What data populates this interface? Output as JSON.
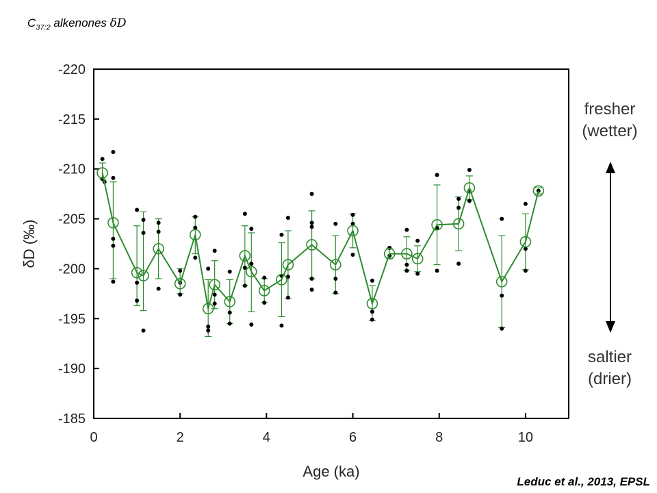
{
  "header": {
    "title_prefix": "C",
    "title_subscript": "37:2",
    "title_text": " alkenones ",
    "title_delta": "δD"
  },
  "citation": "Leduc et al., 2013, EPSL",
  "annotations": {
    "top_line1": "fresher",
    "top_line2": "(wetter)",
    "bottom_line1": "saltier",
    "bottom_line2": "(drier)"
  },
  "colors": {
    "series_line": "#2e8b2e",
    "replicates": "#000000",
    "axis": "#000000"
  },
  "chart_data": {
    "type": "line",
    "xlabel": "Age (ka)",
    "ylabel": "δD (‰)",
    "xlim": [
      0,
      11
    ],
    "ylim": [
      -220,
      -185
    ],
    "y_inverted": true,
    "xticks": [
      0,
      2,
      4,
      6,
      8,
      10
    ],
    "yticks": [
      -220,
      -215,
      -210,
      -205,
      -200,
      -195,
      -190,
      -185
    ],
    "mean_series": {
      "marker": "open-circle",
      "points": [
        {
          "x": 0.2,
          "y": -209.6,
          "lo": -210.6,
          "hi": -209.0
        },
        {
          "x": 0.45,
          "y": -204.6,
          "lo": -208.7,
          "hi": -199.0
        },
        {
          "x": 1.0,
          "y": -199.6,
          "lo": -204.3,
          "hi": -196.3
        },
        {
          "x": 1.15,
          "y": -199.3,
          "lo": -205.7,
          "hi": -195.8
        },
        {
          "x": 1.5,
          "y": -202.0,
          "lo": -205.0,
          "hi": -199.0
        },
        {
          "x": 2.0,
          "y": -198.5,
          "lo": -200.0,
          "hi": -197.5
        },
        {
          "x": 2.35,
          "y": -203.4,
          "lo": -205.2,
          "hi": -201.5
        },
        {
          "x": 2.65,
          "y": -196.0,
          "lo": -198.9,
          "hi": -193.2
        },
        {
          "x": 2.8,
          "y": -198.4,
          "lo": -200.8,
          "hi": -196.0
        },
        {
          "x": 3.15,
          "y": -196.7,
          "lo": -198.9,
          "hi": -194.5
        },
        {
          "x": 3.5,
          "y": -201.3,
          "lo": -204.3,
          "hi": -198.3
        },
        {
          "x": 3.65,
          "y": -199.7,
          "lo": -203.6,
          "hi": -195.7
        },
        {
          "x": 3.95,
          "y": -197.8,
          "lo": -199.0,
          "hi": -196.6
        },
        {
          "x": 4.35,
          "y": -198.9,
          "lo": -202.6,
          "hi": -195.2
        },
        {
          "x": 4.5,
          "y": -200.4,
          "lo": -203.8,
          "hi": -197.0
        },
        {
          "x": 5.05,
          "y": -202.4,
          "lo": -205.8,
          "hi": -199.0
        },
        {
          "x": 5.6,
          "y": -200.4,
          "lo": -203.3,
          "hi": -197.5
        },
        {
          "x": 6.0,
          "y": -203.8,
          "lo": -205.5,
          "hi": -202.1
        },
        {
          "x": 6.45,
          "y": -196.5,
          "lo": -198.3,
          "hi": -194.8
        },
        {
          "x": 6.85,
          "y": -201.5,
          "lo": -202.0,
          "hi": -201.0
        },
        {
          "x": 7.25,
          "y": -201.5,
          "lo": -203.2,
          "hi": -199.8
        },
        {
          "x": 7.5,
          "y": -201.0,
          "lo": -202.3,
          "hi": -199.7
        },
        {
          "x": 7.95,
          "y": -204.4,
          "lo": -208.4,
          "hi": -200.4
        },
        {
          "x": 8.45,
          "y": -204.5,
          "lo": -207.2,
          "hi": -201.8
        },
        {
          "x": 8.7,
          "y": -208.1,
          "lo": -209.3,
          "hi": -206.9
        },
        {
          "x": 9.45,
          "y": -198.7,
          "lo": -203.3,
          "hi": -194.1
        },
        {
          "x": 10.0,
          "y": -202.7,
          "lo": -205.5,
          "hi": -199.9
        },
        {
          "x": 10.3,
          "y": -207.8,
          "lo": -208.1,
          "hi": -207.5
        }
      ]
    },
    "replicates": {
      "marker": "filled-dot",
      "points": [
        {
          "x": 0.2,
          "y": -211.0
        },
        {
          "x": 0.2,
          "y": -209.0
        },
        {
          "x": 0.25,
          "y": -208.7
        },
        {
          "x": 0.45,
          "y": -211.7
        },
        {
          "x": 0.45,
          "y": -209.1
        },
        {
          "x": 0.45,
          "y": -203.0
        },
        {
          "x": 0.45,
          "y": -202.3
        },
        {
          "x": 0.45,
          "y": -198.7
        },
        {
          "x": 1.0,
          "y": -205.9
        },
        {
          "x": 1.0,
          "y": -198.6
        },
        {
          "x": 1.0,
          "y": -196.8
        },
        {
          "x": 1.15,
          "y": -204.9
        },
        {
          "x": 1.15,
          "y": -203.6
        },
        {
          "x": 1.15,
          "y": -193.8
        },
        {
          "x": 1.5,
          "y": -204.6
        },
        {
          "x": 1.5,
          "y": -203.7
        },
        {
          "x": 1.5,
          "y": -198.0
        },
        {
          "x": 2.0,
          "y": -199.8
        },
        {
          "x": 2.0,
          "y": -198.6
        },
        {
          "x": 2.0,
          "y": -197.4
        },
        {
          "x": 2.35,
          "y": -205.2
        },
        {
          "x": 2.35,
          "y": -204.1
        },
        {
          "x": 2.35,
          "y": -201.1
        },
        {
          "x": 2.65,
          "y": -200.0
        },
        {
          "x": 2.65,
          "y": -194.2
        },
        {
          "x": 2.65,
          "y": -193.8
        },
        {
          "x": 2.8,
          "y": -201.8
        },
        {
          "x": 2.8,
          "y": -197.4
        },
        {
          "x": 2.8,
          "y": -196.5
        },
        {
          "x": 3.15,
          "y": -199.7
        },
        {
          "x": 3.15,
          "y": -195.6
        },
        {
          "x": 3.15,
          "y": -194.5
        },
        {
          "x": 3.5,
          "y": -205.5
        },
        {
          "x": 3.5,
          "y": -200.1
        },
        {
          "x": 3.5,
          "y": -198.3
        },
        {
          "x": 3.65,
          "y": -204.0
        },
        {
          "x": 3.65,
          "y": -200.5
        },
        {
          "x": 3.65,
          "y": -194.4
        },
        {
          "x": 3.95,
          "y": -199.1
        },
        {
          "x": 3.95,
          "y": -196.6
        },
        {
          "x": 4.35,
          "y": -203.4
        },
        {
          "x": 4.35,
          "y": -199.3
        },
        {
          "x": 4.35,
          "y": -194.3
        },
        {
          "x": 4.5,
          "y": -205.1
        },
        {
          "x": 4.5,
          "y": -199.2
        },
        {
          "x": 4.5,
          "y": -197.1
        },
        {
          "x": 5.05,
          "y": -207.5
        },
        {
          "x": 5.05,
          "y": -204.6
        },
        {
          "x": 5.05,
          "y": -204.2
        },
        {
          "x": 5.05,
          "y": -199.0
        },
        {
          "x": 5.05,
          "y": -197.9
        },
        {
          "x": 5.6,
          "y": -204.5
        },
        {
          "x": 5.6,
          "y": -199.0
        },
        {
          "x": 5.6,
          "y": -197.6
        },
        {
          "x": 6.0,
          "y": -205.4
        },
        {
          "x": 6.0,
          "y": -204.5
        },
        {
          "x": 6.0,
          "y": -201.4
        },
        {
          "x": 6.45,
          "y": -198.8
        },
        {
          "x": 6.45,
          "y": -195.7
        },
        {
          "x": 6.45,
          "y": -194.9
        },
        {
          "x": 6.85,
          "y": -202.1
        },
        {
          "x": 6.85,
          "y": -201.3
        },
        {
          "x": 7.25,
          "y": -203.9
        },
        {
          "x": 7.25,
          "y": -200.4
        },
        {
          "x": 7.25,
          "y": -199.8
        },
        {
          "x": 7.5,
          "y": -202.8
        },
        {
          "x": 7.5,
          "y": -199.5
        },
        {
          "x": 7.95,
          "y": -209.4
        },
        {
          "x": 7.95,
          "y": -204.1
        },
        {
          "x": 7.95,
          "y": -199.8
        },
        {
          "x": 8.45,
          "y": -207.0
        },
        {
          "x": 8.45,
          "y": -206.1
        },
        {
          "x": 8.45,
          "y": -200.5
        },
        {
          "x": 8.7,
          "y": -209.9
        },
        {
          "x": 8.7,
          "y": -207.8
        },
        {
          "x": 8.7,
          "y": -206.8
        },
        {
          "x": 9.45,
          "y": -205.0
        },
        {
          "x": 9.45,
          "y": -197.3
        },
        {
          "x": 9.45,
          "y": -194.0
        },
        {
          "x": 10.0,
          "y": -206.5
        },
        {
          "x": 10.0,
          "y": -202.0
        },
        {
          "x": 10.0,
          "y": -199.8
        },
        {
          "x": 10.3,
          "y": -207.8
        }
      ]
    }
  }
}
